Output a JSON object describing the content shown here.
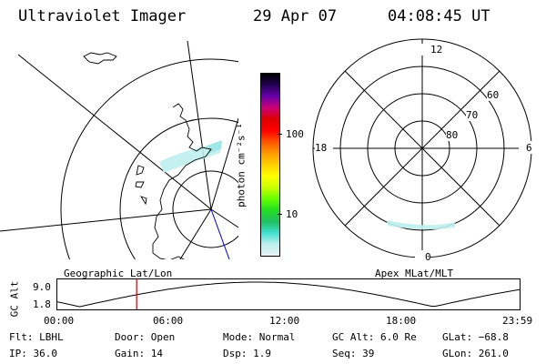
{
  "header": {
    "title": "Ultraviolet Imager",
    "date": "29 Apr 07",
    "time": "04:08:45 UT"
  },
  "colorbar": {
    "unit_label": "photon cm⁻²s⁻¹",
    "ticks": [
      {
        "value": 100,
        "label": "100"
      },
      {
        "value": 10,
        "label": "10"
      }
    ],
    "range": [
      2,
      800
    ],
    "scale": "log",
    "colors": [
      "#e8f4f4",
      "#bfeeee",
      "#40e0d0",
      "#20c060",
      "#22dd22",
      "#66ff00",
      "#ccff00",
      "#ffff00",
      "#ffd000",
      "#ff9900",
      "#ff5500",
      "#ff0000",
      "#e00000",
      "#cc0077",
      "#6a00aa",
      "#220055",
      "#000000"
    ]
  },
  "geo_map": {
    "label": "Geographic Lat/Lon"
  },
  "polar_plot": {
    "label": "Apex MLat/MLT",
    "mlt_labels": {
      "top": "12",
      "left": "18",
      "right": "6",
      "bottom": "0"
    },
    "lat_labels": [
      "60",
      "70",
      "80"
    ]
  },
  "altitude_strip": {
    "ylabel": "GC Alt",
    "yticks": [
      "9.0",
      "1.8"
    ],
    "xticks": [
      "00:00",
      "06:00",
      "12:00",
      "18:00",
      "23:59"
    ],
    "current_time_hours": 4.15,
    "marker_color": "#cc0000"
  },
  "info": {
    "row1": {
      "flt": "Flt: LBHL",
      "door": "Door: Open",
      "mode": "Mode: Normal",
      "gc_alt": "GC Alt: 6.0 Re",
      "glat": "GLat: −68.8"
    },
    "row2": {
      "ip": "IP: 36.0",
      "gain": "Gain: 14",
      "dsp": "Dsp:    1.9",
      "seq": "Seq: 39",
      "glon": "GLon: 261.0"
    }
  }
}
